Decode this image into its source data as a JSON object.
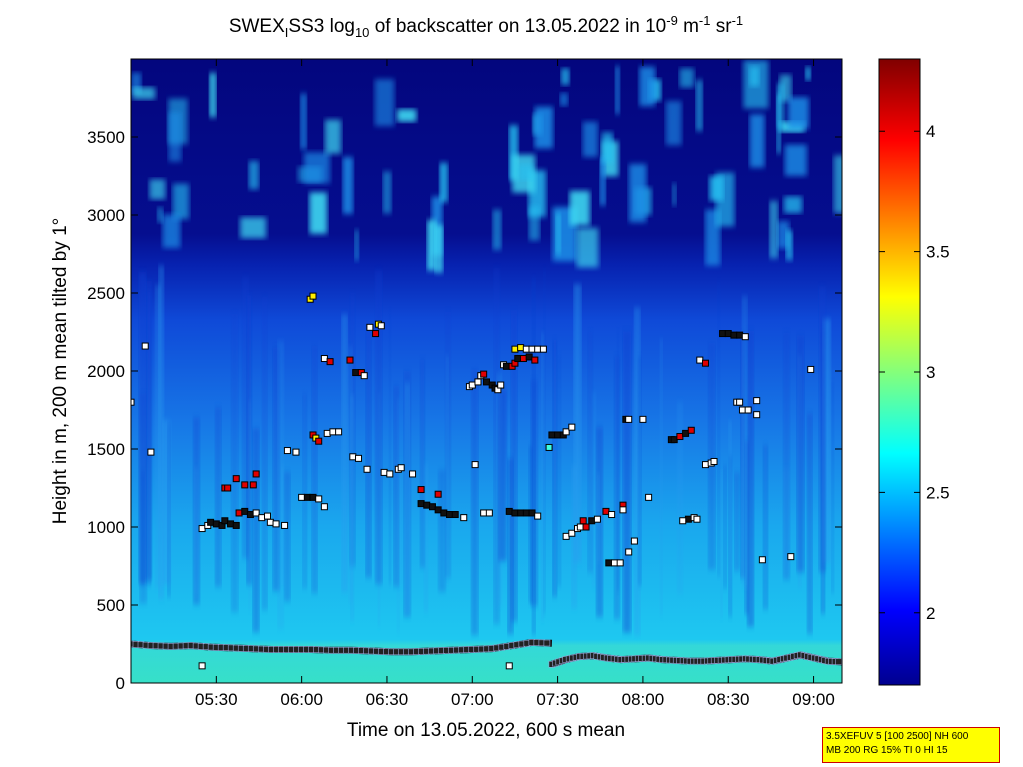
{
  "figure": {
    "title_parts": [
      "SWEX",
      "I",
      "SS3 log",
      "10",
      " of backscatter on 13.05.2022 in 10",
      "-9",
      " m",
      "-1",
      " sr",
      "-1"
    ]
  },
  "chart_data": {
    "type": "heatmap",
    "title": "SWEX_ISS3 log10 of backscatter on 13.05.2022 in 10^-9 m^-1 sr^-1",
    "xlabel": "Time on 13.05.2022, 600 s mean",
    "ylabel": "Height in m, 200 m mean tilted by 1°",
    "x_ticks": [
      "05:30",
      "06:00",
      "06:30",
      "07:00",
      "07:30",
      "08:00",
      "08:30",
      "09:00"
    ],
    "y_ticks": [
      "0",
      "500",
      "1000",
      "1500",
      "2000",
      "2500",
      "3000",
      "3500"
    ],
    "xlim": [
      "05:00",
      "09:10"
    ],
    "ylim": [
      0,
      4000
    ],
    "colorbar": {
      "ticks": [
        "2",
        "2.5",
        "3",
        "3.5",
        "4"
      ],
      "range": [
        1.7,
        4.3
      ],
      "colormap": [
        "#00008f",
        "#0000ff",
        "#00ffff",
        "#ffff00",
        "#ff0000",
        "#800000"
      ]
    },
    "field_description": {
      "background_level_high_altitude": 1.85,
      "background_level_mid": 2.4,
      "near_surface_level": 2.75
    },
    "series": [
      {
        "marker": "square",
        "points": [
          [
            "05:00",
            1800,
            "w"
          ],
          [
            "05:05",
            2160,
            "w"
          ],
          [
            "05:07",
            1480,
            "w"
          ],
          [
            "05:25",
            110,
            "w"
          ],
          [
            "05:25",
            990,
            "w"
          ],
          [
            "05:27",
            1010,
            "w"
          ],
          [
            "05:28",
            1030,
            "k"
          ],
          [
            "05:30",
            1020,
            "k"
          ],
          [
            "05:32",
            1010,
            "k"
          ],
          [
            "05:33",
            1040,
            "k"
          ],
          [
            "05:35",
            1020,
            "k"
          ],
          [
            "05:37",
            1010,
            "k"
          ],
          [
            "05:33",
            1250,
            "r"
          ],
          [
            "05:34",
            1250,
            "r"
          ],
          [
            "05:37",
            1310,
            "r"
          ],
          [
            "05:40",
            1270,
            "r"
          ],
          [
            "05:43",
            1270,
            "r"
          ],
          [
            "05:44",
            1340,
            "r"
          ],
          [
            "05:38",
            1090,
            "r"
          ],
          [
            "05:40",
            1100,
            "k"
          ],
          [
            "05:42",
            1080,
            "k"
          ],
          [
            "05:44",
            1090,
            "w"
          ],
          [
            "05:46",
            1060,
            "w"
          ],
          [
            "05:48",
            1070,
            "w"
          ],
          [
            "05:49",
            1030,
            "w"
          ],
          [
            "05:51",
            1020,
            "w"
          ],
          [
            "05:54",
            1010,
            "w"
          ],
          [
            "05:55",
            1490,
            "w"
          ],
          [
            "05:58",
            1480,
            "w"
          ],
          [
            "06:00",
            1190,
            "w"
          ],
          [
            "06:02",
            1190,
            "k"
          ],
          [
            "06:04",
            1190,
            "k"
          ],
          [
            "06:06",
            1180,
            "w"
          ],
          [
            "06:08",
            1130,
            "w"
          ],
          [
            "06:03",
            2460,
            "y"
          ],
          [
            "06:04",
            2480,
            "y"
          ],
          [
            "06:04",
            1590,
            "r"
          ],
          [
            "06:05",
            1570,
            "y"
          ],
          [
            "06:06",
            1550,
            "r"
          ],
          [
            "06:08",
            2080,
            "w"
          ],
          [
            "06:10",
            2060,
            "r"
          ],
          [
            "06:09",
            1600,
            "w"
          ],
          [
            "06:11",
            1610,
            "w"
          ],
          [
            "06:13",
            1610,
            "w"
          ],
          [
            "06:17",
            2070,
            "r"
          ],
          [
            "06:19",
            1990,
            "k"
          ],
          [
            "06:21",
            1990,
            "r"
          ],
          [
            "06:22",
            1970,
            "w"
          ],
          [
            "06:18",
            1450,
            "w"
          ],
          [
            "06:20",
            1440,
            "w"
          ],
          [
            "06:23",
            1370,
            "w"
          ],
          [
            "06:24",
            2280,
            "w"
          ],
          [
            "06:27",
            2300,
            "y"
          ],
          [
            "06:28",
            2290,
            "w"
          ],
          [
            "06:26",
            2240,
            "r"
          ],
          [
            "06:29",
            1350,
            "w"
          ],
          [
            "06:31",
            1340,
            "w"
          ],
          [
            "06:34",
            1370,
            "w"
          ],
          [
            "06:35",
            1380,
            "w"
          ],
          [
            "06:39",
            1340,
            "w"
          ],
          [
            "06:42",
            1240,
            "r"
          ],
          [
            "06:42",
            1150,
            "k"
          ],
          [
            "06:44",
            1140,
            "k"
          ],
          [
            "06:46",
            1130,
            "k"
          ],
          [
            "06:48",
            1210,
            "r"
          ],
          [
            "06:48",
            1110,
            "k"
          ],
          [
            "06:50",
            1090,
            "k"
          ],
          [
            "06:52",
            1080,
            "k"
          ],
          [
            "06:54",
            1080,
            "k"
          ],
          [
            "06:57",
            1060,
            "w"
          ],
          [
            "06:59",
            1900,
            "w"
          ],
          [
            "07:00",
            1910,
            "w"
          ],
          [
            "07:02",
            1930,
            "w"
          ],
          [
            "07:03",
            1970,
            "w"
          ],
          [
            "07:04",
            1980,
            "r"
          ],
          [
            "07:05",
            1930,
            "k"
          ],
          [
            "07:07",
            1910,
            "k"
          ],
          [
            "07:08",
            1890,
            "k"
          ],
          [
            "07:09",
            1880,
            "w"
          ],
          [
            "07:01",
            1400,
            "w"
          ],
          [
            "07:04",
            1090,
            "w"
          ],
          [
            "07:06",
            1090,
            "w"
          ],
          [
            "07:10",
            1910,
            "w"
          ],
          [
            "07:11",
            2040,
            "w"
          ],
          [
            "07:12",
            2030,
            "k"
          ],
          [
            "07:14",
            2030,
            "r"
          ],
          [
            "07:15",
            2050,
            "r"
          ],
          [
            "07:16",
            2080,
            "k"
          ],
          [
            "07:18",
            2080,
            "r"
          ],
          [
            "07:20",
            2090,
            "k"
          ],
          [
            "07:22",
            2070,
            "r"
          ],
          [
            "07:13",
            110,
            "w"
          ],
          [
            "07:15",
            2140,
            "y"
          ],
          [
            "07:17",
            2150,
            "y"
          ],
          [
            "07:19",
            2140,
            "w"
          ],
          [
            "07:21",
            2140,
            "w"
          ],
          [
            "07:23",
            2140,
            "w"
          ],
          [
            "07:25",
            2140,
            "w"
          ],
          [
            "07:13",
            1100,
            "k"
          ],
          [
            "07:15",
            1090,
            "k"
          ],
          [
            "07:17",
            1090,
            "k"
          ],
          [
            "07:19",
            1090,
            "k"
          ],
          [
            "07:21",
            1090,
            "k"
          ],
          [
            "07:23",
            1070,
            "w"
          ],
          [
            "07:27",
            1510,
            "c"
          ],
          [
            "07:28",
            1590,
            "k"
          ],
          [
            "07:30",
            1590,
            "k"
          ],
          [
            "07:32",
            1590,
            "k"
          ],
          [
            "07:33",
            1610,
            "w"
          ],
          [
            "07:35",
            1640,
            "w"
          ],
          [
            "07:33",
            940,
            "w"
          ],
          [
            "07:35",
            960,
            "w"
          ],
          [
            "07:37",
            990,
            "w"
          ],
          [
            "07:38",
            1000,
            "w"
          ],
          [
            "07:39",
            1040,
            "r"
          ],
          [
            "07:40",
            1000,
            "r"
          ],
          [
            "07:42",
            1040,
            "k"
          ],
          [
            "07:44",
            1050,
            "w"
          ],
          [
            "07:47",
            1100,
            "r"
          ],
          [
            "07:49",
            1080,
            "w"
          ],
          [
            "07:53",
            1140,
            "r"
          ],
          [
            "07:53",
            1110,
            "w"
          ],
          [
            "07:48",
            770,
            "k"
          ],
          [
            "07:50",
            770,
            "w"
          ],
          [
            "07:52",
            770,
            "w"
          ],
          [
            "07:55",
            840,
            "w"
          ],
          [
            "07:57",
            910,
            "w"
          ],
          [
            "07:54",
            1690,
            "k"
          ],
          [
            "07:55",
            1690,
            "w"
          ],
          [
            "08:00",
            1690,
            "w"
          ],
          [
            "08:02",
            1190,
            "w"
          ],
          [
            "08:10",
            1560,
            "k"
          ],
          [
            "08:11",
            1560,
            "k"
          ],
          [
            "08:13",
            1580,
            "r"
          ],
          [
            "08:15",
            1600,
            "k"
          ],
          [
            "08:17",
            1620,
            "r"
          ],
          [
            "08:16",
            1050,
            "k"
          ],
          [
            "08:14",
            1040,
            "w"
          ],
          [
            "08:18",
            1060,
            "w"
          ],
          [
            "08:19",
            1050,
            "w"
          ],
          [
            "08:20",
            2070,
            "w"
          ],
          [
            "08:22",
            2050,
            "r"
          ],
          [
            "08:22",
            1400,
            "w"
          ],
          [
            "08:24",
            1410,
            "w"
          ],
          [
            "08:25",
            1420,
            "w"
          ],
          [
            "08:28",
            2240,
            "k"
          ],
          [
            "08:30",
            2240,
            "k"
          ],
          [
            "08:32",
            2230,
            "k"
          ],
          [
            "08:34",
            2230,
            "k"
          ],
          [
            "08:36",
            2220,
            "w"
          ],
          [
            "08:33",
            1800,
            "w"
          ],
          [
            "08:34",
            1800,
            "w"
          ],
          [
            "08:35",
            1750,
            "w"
          ],
          [
            "08:37",
            1750,
            "w"
          ],
          [
            "08:40",
            1720,
            "w"
          ],
          [
            "08:40",
            1810,
            "w"
          ],
          [
            "08:42",
            790,
            "w"
          ],
          [
            "08:52",
            810,
            "w"
          ],
          [
            "08:59",
            2010,
            "w"
          ]
        ]
      }
    ],
    "surface_layer_lines": [
      {
        "from": "05:00",
        "to": "07:28",
        "heights": [
          250,
          240,
          235,
          240,
          230,
          225,
          220,
          215,
          215,
          215,
          210,
          210,
          205,
          200,
          200,
          205,
          210,
          215,
          220,
          240,
          260,
          255
        ]
      },
      {
        "from": "07:28",
        "to": "09:10",
        "heights": [
          120,
          150,
          170,
          175,
          160,
          150,
          155,
          160,
          150,
          145,
          140,
          140,
          145,
          150,
          155,
          150,
          140,
          160,
          180,
          160,
          140,
          135
        ]
      }
    ]
  },
  "info_box": {
    "line1": "3.5XEFUV 5 [100 2500] NH 600",
    "line2": "MB 200 RG 15% TI 0 HI 15"
  }
}
